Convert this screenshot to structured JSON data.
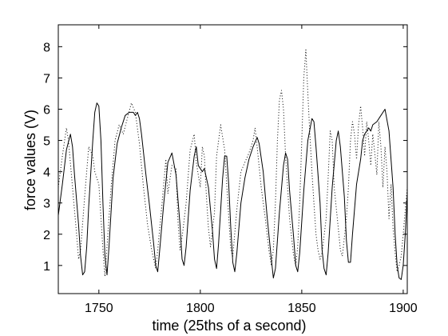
{
  "chart_data": {
    "type": "line",
    "title": "",
    "xlabel": "time (25ths of a second)",
    "ylabel": "force values (V)",
    "xlim": [
      1730,
      1902
    ],
    "ylim": [
      0.1,
      8.7
    ],
    "x_ticks": [
      1750,
      1800,
      1850,
      1900
    ],
    "y_ticks": [
      1,
      2,
      3,
      4,
      5,
      6,
      7,
      8
    ],
    "grid": false,
    "legend": "none",
    "series": [
      {
        "style": "solid",
        "color": "#000000",
        "points": [
          [
            1730,
            2.6
          ],
          [
            1732,
            3.6
          ],
          [
            1734,
            4.7
          ],
          [
            1736,
            5.2
          ],
          [
            1737,
            4.8
          ],
          [
            1738,
            3.9
          ],
          [
            1740,
            2.3
          ],
          [
            1741,
            1.3
          ],
          [
            1742,
            0.7
          ],
          [
            1743,
            0.8
          ],
          [
            1744,
            1.6
          ],
          [
            1745,
            2.9
          ],
          [
            1747,
            5.0
          ],
          [
            1748,
            5.9
          ],
          [
            1749,
            6.2
          ],
          [
            1750,
            6.1
          ],
          [
            1751,
            5.0
          ],
          [
            1752,
            3.0
          ],
          [
            1753,
            1.3
          ],
          [
            1754,
            0.7
          ],
          [
            1755,
            1.6
          ],
          [
            1757,
            3.8
          ],
          [
            1759,
            4.9
          ],
          [
            1761,
            5.4
          ],
          [
            1763,
            5.8
          ],
          [
            1765,
            5.9
          ],
          [
            1767,
            5.9
          ],
          [
            1768,
            5.8
          ],
          [
            1769,
            5.9
          ],
          [
            1770,
            5.7
          ],
          [
            1771,
            5.2
          ],
          [
            1773,
            4.0
          ],
          [
            1775,
            2.9
          ],
          [
            1777,
            1.7
          ],
          [
            1778,
            1.0
          ],
          [
            1779,
            0.8
          ],
          [
            1780,
            1.5
          ],
          [
            1782,
            3.0
          ],
          [
            1784,
            4.3
          ],
          [
            1786,
            4.6
          ],
          [
            1788,
            3.9
          ],
          [
            1790,
            2.3
          ],
          [
            1791,
            1.2
          ],
          [
            1792,
            1.0
          ],
          [
            1793,
            1.6
          ],
          [
            1795,
            3.4
          ],
          [
            1797,
            4.5
          ],
          [
            1798,
            4.8
          ],
          [
            1799,
            4.2
          ],
          [
            1800,
            4.1
          ],
          [
            1801,
            4.0
          ],
          [
            1802,
            4.1
          ],
          [
            1804,
            3.5
          ],
          [
            1806,
            2.1
          ],
          [
            1807,
            1.2
          ],
          [
            1808,
            0.9
          ],
          [
            1809,
            1.7
          ],
          [
            1811,
            3.8
          ],
          [
            1812,
            4.5
          ],
          [
            1813,
            4.5
          ],
          [
            1814,
            3.6
          ],
          [
            1815,
            2.2
          ],
          [
            1816,
            1.1
          ],
          [
            1817,
            0.8
          ],
          [
            1818,
            1.4
          ],
          [
            1820,
            3.0
          ],
          [
            1822,
            3.8
          ],
          [
            1824,
            4.4
          ],
          [
            1826,
            4.8
          ],
          [
            1828,
            5.1
          ],
          [
            1829,
            4.9
          ],
          [
            1831,
            4.0
          ],
          [
            1833,
            2.5
          ],
          [
            1835,
            1.2
          ],
          [
            1836,
            0.6
          ],
          [
            1837,
            0.9
          ],
          [
            1839,
            2.7
          ],
          [
            1841,
            4.2
          ],
          [
            1842,
            4.6
          ],
          [
            1843,
            4.4
          ],
          [
            1844,
            3.4
          ],
          [
            1846,
            1.9
          ],
          [
            1847,
            1.0
          ],
          [
            1848,
            0.8
          ],
          [
            1849,
            1.4
          ],
          [
            1851,
            3.4
          ],
          [
            1853,
            5.0
          ],
          [
            1855,
            5.7
          ],
          [
            1856,
            5.6
          ],
          [
            1857,
            4.8
          ],
          [
            1859,
            3.0
          ],
          [
            1860,
            1.5
          ],
          [
            1861,
            0.9
          ],
          [
            1862,
            0.7
          ],
          [
            1863,
            1.4
          ],
          [
            1865,
            3.5
          ],
          [
            1867,
            5.0
          ],
          [
            1868,
            5.3
          ],
          [
            1869,
            4.8
          ],
          [
            1871,
            3.2
          ],
          [
            1872,
            1.8
          ],
          [
            1873,
            1.1
          ],
          [
            1874,
            1.1
          ],
          [
            1875,
            2.0
          ],
          [
            1877,
            3.6
          ],
          [
            1879,
            4.4
          ],
          [
            1880,
            5.0
          ],
          [
            1881,
            5.2
          ],
          [
            1882,
            5.3
          ],
          [
            1883,
            5.4
          ],
          [
            1884,
            5.3
          ],
          [
            1885,
            5.5
          ],
          [
            1887,
            5.6
          ],
          [
            1889,
            5.8
          ],
          [
            1891,
            6.0
          ],
          [
            1893,
            5.3
          ],
          [
            1895,
            3.5
          ],
          [
            1896,
            2.0
          ],
          [
            1897,
            1.0
          ],
          [
            1898,
            0.6
          ],
          [
            1899,
            0.55
          ],
          [
            1900,
            1.0
          ],
          [
            1901,
            2.0
          ],
          [
            1902,
            3.3
          ]
        ]
      },
      {
        "style": "dotted",
        "color": "#000000",
        "points": [
          [
            1730,
            3.5
          ],
          [
            1732,
            4.5
          ],
          [
            1734,
            5.4
          ],
          [
            1735,
            5.0
          ],
          [
            1737,
            3.5
          ],
          [
            1739,
            2.0
          ],
          [
            1740,
            1.2
          ],
          [
            1741,
            1.5
          ],
          [
            1743,
            3.2
          ],
          [
            1745,
            4.8
          ],
          [
            1747,
            4.5
          ],
          [
            1748,
            4.0
          ],
          [
            1750,
            3.6
          ],
          [
            1752,
            1.5
          ],
          [
            1753,
            0.65
          ],
          [
            1754,
            1.6
          ],
          [
            1756,
            3.5
          ],
          [
            1758,
            5.0
          ],
          [
            1760,
            5.5
          ],
          [
            1762,
            5.2
          ],
          [
            1764,
            5.7
          ],
          [
            1766,
            6.2
          ],
          [
            1768,
            5.9
          ],
          [
            1770,
            4.9
          ],
          [
            1772,
            3.5
          ],
          [
            1774,
            2.3
          ],
          [
            1776,
            1.5
          ],
          [
            1778,
            0.9
          ],
          [
            1779,
            1.5
          ],
          [
            1781,
            2.9
          ],
          [
            1783,
            4.4
          ],
          [
            1784,
            3.3
          ],
          [
            1786,
            4.2
          ],
          [
            1788,
            4.1
          ],
          [
            1789,
            2.4
          ],
          [
            1790,
            1.5
          ],
          [
            1791,
            1.9
          ],
          [
            1793,
            3.0
          ],
          [
            1795,
            4.7
          ],
          [
            1797,
            5.2
          ],
          [
            1798,
            4.3
          ],
          [
            1800,
            3.5
          ],
          [
            1801,
            4.8
          ],
          [
            1802,
            4.5
          ],
          [
            1803,
            3.2
          ],
          [
            1804,
            2.2
          ],
          [
            1805,
            1.6
          ],
          [
            1807,
            2.7
          ],
          [
            1808,
            4.5
          ],
          [
            1810,
            5.5
          ],
          [
            1812,
            4.7
          ],
          [
            1813,
            3.6
          ],
          [
            1815,
            1.5
          ],
          [
            1816,
            1.3
          ],
          [
            1818,
            2.8
          ],
          [
            1820,
            4.0
          ],
          [
            1822,
            4.3
          ],
          [
            1824,
            4.6
          ],
          [
            1826,
            5.0
          ],
          [
            1827,
            5.4
          ],
          [
            1828,
            4.8
          ],
          [
            1830,
            3.5
          ],
          [
            1832,
            2.5
          ],
          [
            1834,
            1.4
          ],
          [
            1835,
            1.0
          ],
          [
            1836,
            1.5
          ],
          [
            1837,
            3.0
          ],
          [
            1838,
            5.0
          ],
          [
            1839,
            6.3
          ],
          [
            1840,
            6.6
          ],
          [
            1841,
            6.0
          ],
          [
            1842,
            4.5
          ],
          [
            1844,
            2.5
          ],
          [
            1846,
            1.3
          ],
          [
            1847,
            1.0
          ],
          [
            1848,
            1.6
          ],
          [
            1849,
            3.0
          ],
          [
            1850,
            5.0
          ],
          [
            1851,
            7.0
          ],
          [
            1852,
            7.9
          ],
          [
            1853,
            6.5
          ],
          [
            1854,
            5.2
          ],
          [
            1855,
            4.0
          ],
          [
            1856,
            3.0
          ],
          [
            1857,
            2.0
          ],
          [
            1858,
            1.5
          ],
          [
            1859,
            1.2
          ],
          [
            1860,
            1.4
          ],
          [
            1862,
            2.5
          ],
          [
            1863,
            3.8
          ],
          [
            1864,
            5.3
          ],
          [
            1865,
            5.0
          ],
          [
            1866,
            3.5
          ],
          [
            1868,
            2.2
          ],
          [
            1869,
            1.5
          ],
          [
            1870,
            1.3
          ],
          [
            1872,
            2.5
          ],
          [
            1873,
            3.5
          ],
          [
            1874,
            5.0
          ],
          [
            1875,
            5.6
          ],
          [
            1876,
            5.2
          ],
          [
            1877,
            4.4
          ],
          [
            1878,
            5.5
          ],
          [
            1879,
            6.1
          ],
          [
            1880,
            5.4
          ],
          [
            1881,
            4.5
          ],
          [
            1882,
            5.6
          ],
          [
            1883,
            5.0
          ],
          [
            1884,
            4.2
          ],
          [
            1885,
            5.2
          ],
          [
            1886,
            4.6
          ],
          [
            1887,
            3.9
          ],
          [
            1888,
            5.6
          ],
          [
            1889,
            4.8
          ],
          [
            1890,
            3.5
          ],
          [
            1891,
            4.8
          ],
          [
            1892,
            4.0
          ],
          [
            1893,
            2.5
          ],
          [
            1894,
            3.6
          ],
          [
            1895,
            2.2
          ],
          [
            1896,
            1.4
          ],
          [
            1897,
            0.8
          ],
          [
            1898,
            1.0
          ],
          [
            1899,
            1.3
          ],
          [
            1900,
            2.0
          ],
          [
            1901,
            2.8
          ],
          [
            1902,
            3.5
          ]
        ]
      }
    ]
  }
}
